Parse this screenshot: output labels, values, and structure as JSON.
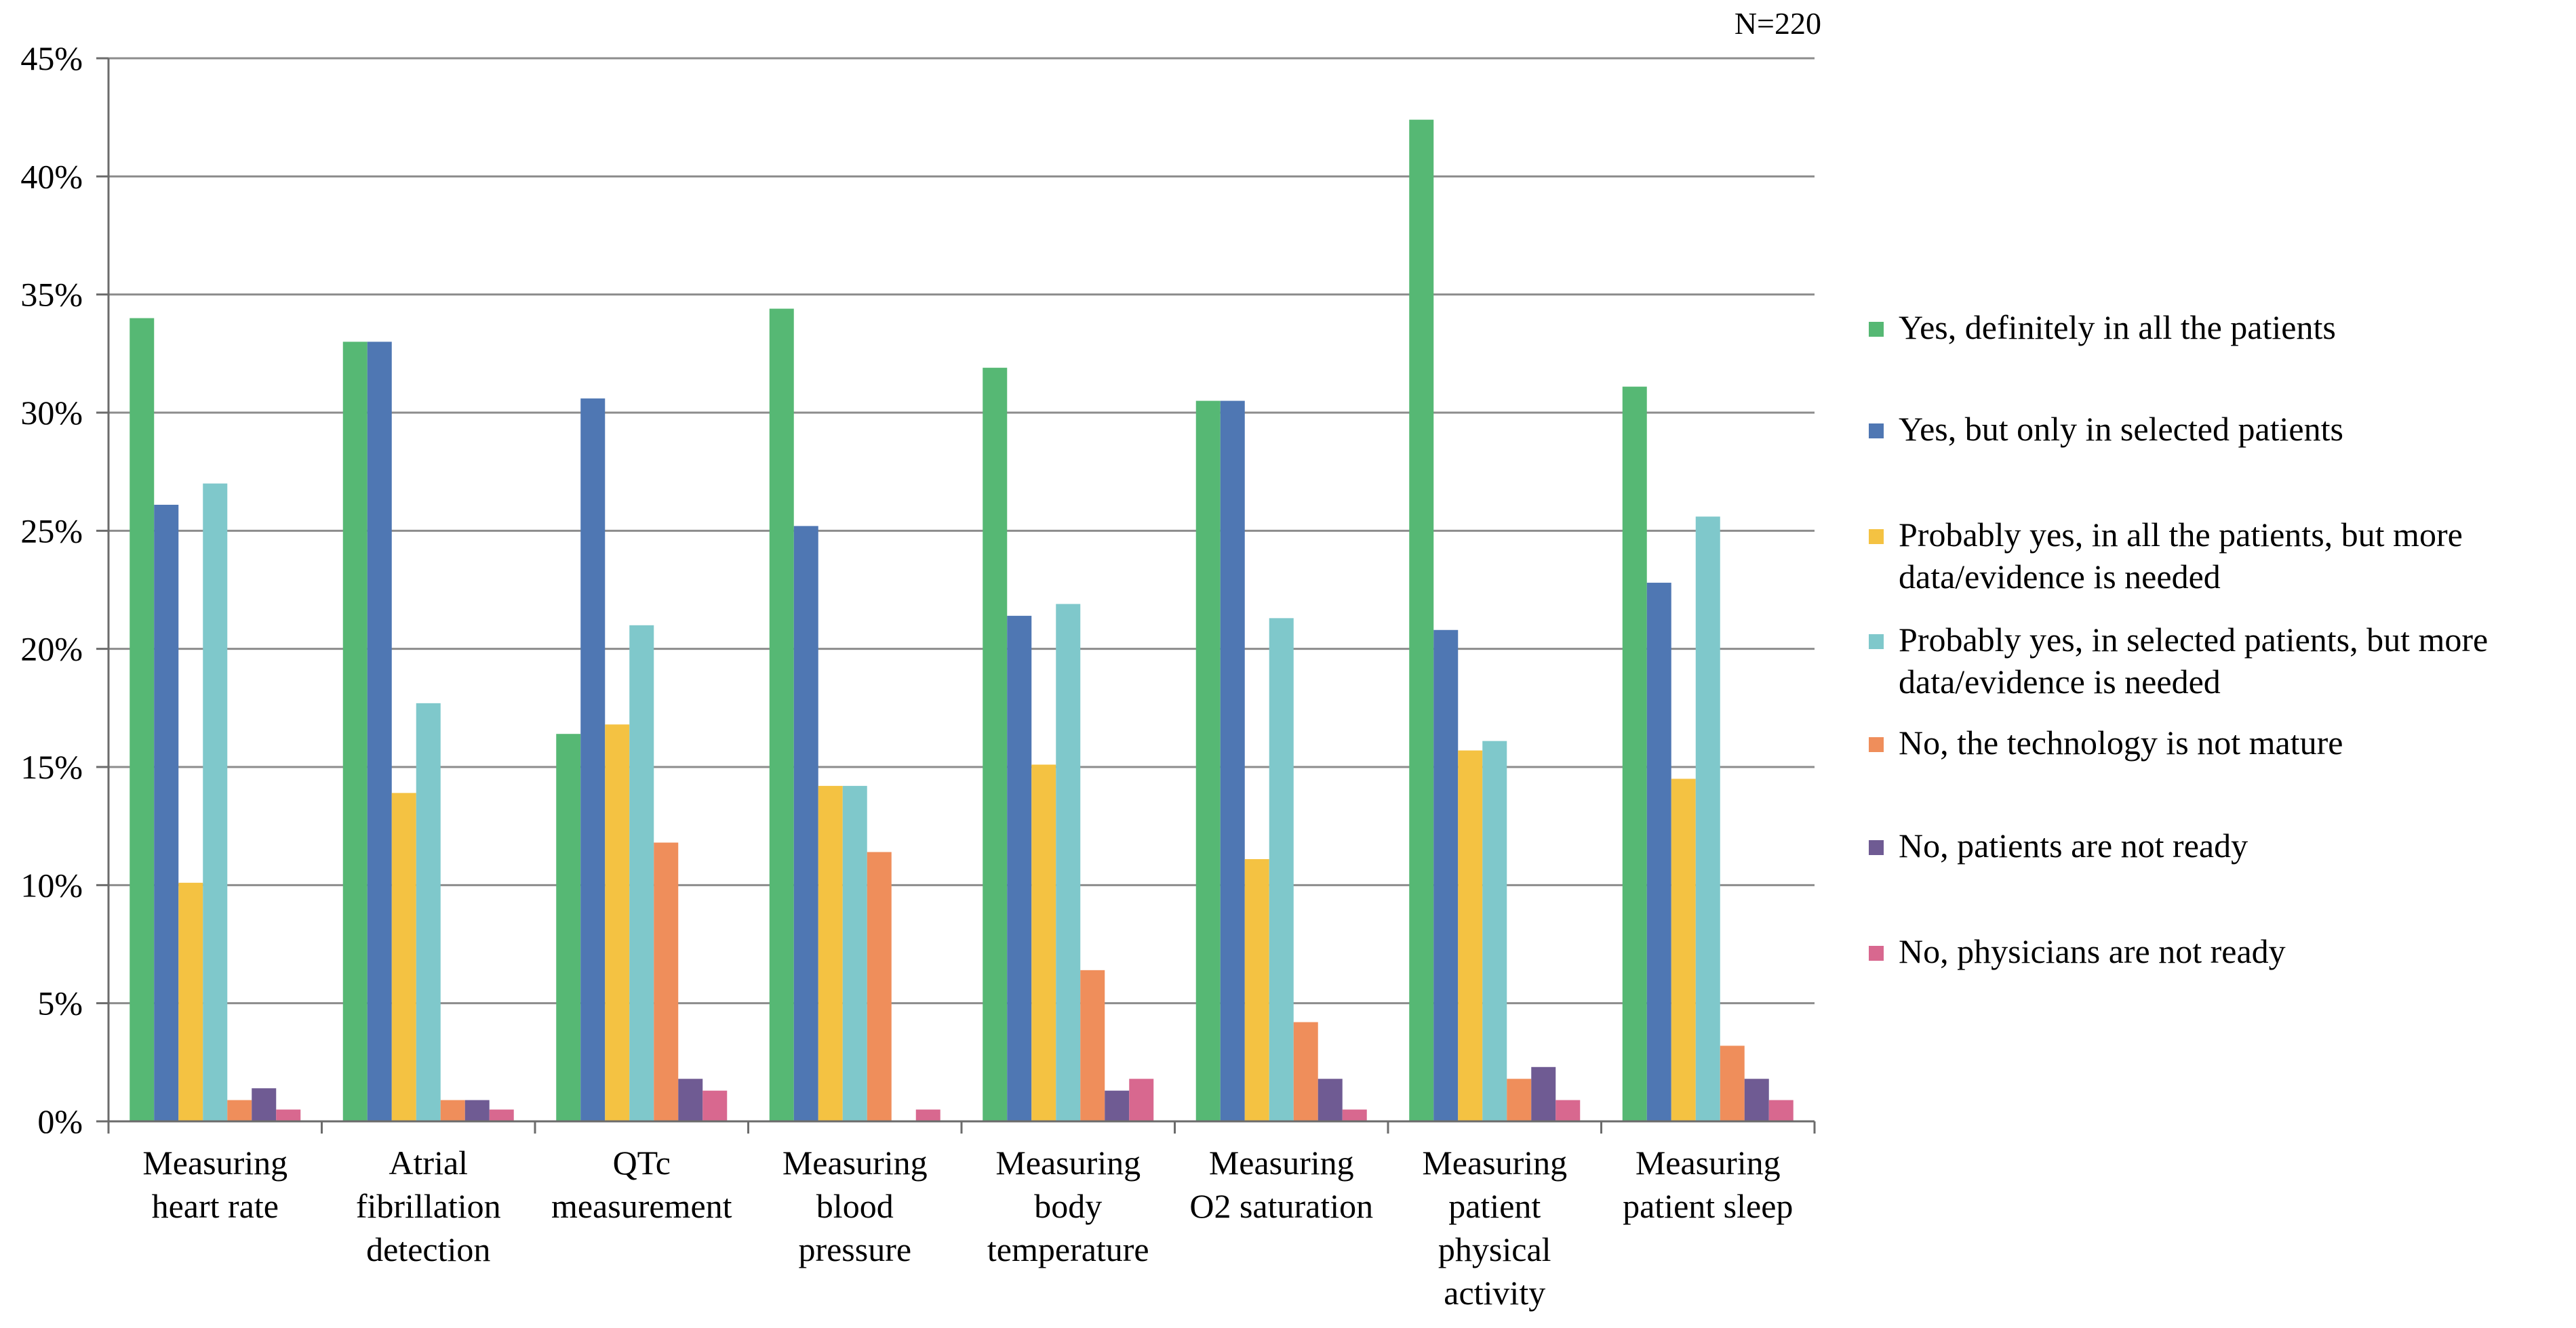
{
  "chart_data": {
    "type": "bar",
    "note": "N=220",
    "categories": [
      [
        "Measuring",
        "heart rate"
      ],
      [
        "Atrial",
        "fibrillation",
        "detection"
      ],
      [
        "QTc",
        "measurement"
      ],
      [
        "Measuring",
        "blood",
        "pressure"
      ],
      [
        "Measuring",
        "body",
        "temperature"
      ],
      [
        "Measuring",
        "O2 saturation"
      ],
      [
        "Measuring",
        "patient",
        "physical",
        "activity"
      ],
      [
        "Measuring",
        "patient sleep"
      ]
    ],
    "ylim": [
      0,
      45
    ],
    "yticks": [
      0,
      5,
      10,
      15,
      20,
      25,
      30,
      35,
      40,
      45
    ],
    "ytick_labels": [
      "0%",
      "5%",
      "10%",
      "15%",
      "20%",
      "25%",
      "30%",
      "35%",
      "40%",
      "45%"
    ],
    "legend_position": "right",
    "series": [
      {
        "name": "Yes, definitely in all the patients",
        "legend": [
          "Yes, definitely in all the patients"
        ],
        "color": "#56b874",
        "values": [
          34.0,
          33.0,
          16.4,
          34.4,
          31.9,
          30.5,
          42.4,
          31.1
        ]
      },
      {
        "name": "Yes, but only in selected patients",
        "legend": [
          "Yes, but only in selected patients"
        ],
        "color": "#4f77b3",
        "values": [
          26.1,
          33.0,
          30.6,
          25.2,
          21.4,
          30.5,
          20.8,
          22.8
        ]
      },
      {
        "name": "Probably yes, in all the patients, but more data/evidence is needed",
        "legend": [
          "Probably yes, in all the patients, but more",
          "data/evidence is needed"
        ],
        "color": "#f4c242",
        "values": [
          10.1,
          13.9,
          16.8,
          14.2,
          15.1,
          11.1,
          15.7,
          14.5
        ]
      },
      {
        "name": "Probably yes, in selected patients, but more data/evidence is needed",
        "legend": [
          "Probably yes, in selected patients, but more",
          "data/evidence is needed"
        ],
        "color": "#7fc8cb",
        "values": [
          27.0,
          17.7,
          21.0,
          14.2,
          21.9,
          21.3,
          16.1,
          25.6
        ]
      },
      {
        "name": "No, the technology is not mature",
        "legend": [
          "No, the technology is not mature"
        ],
        "color": "#ef8e5b",
        "values": [
          0.9,
          0.9,
          11.8,
          11.4,
          6.4,
          4.2,
          1.8,
          3.2
        ]
      },
      {
        "name": "No, patients are not ready",
        "legend": [
          "No, patients are not ready"
        ],
        "color": "#6f5b93",
        "values": [
          1.4,
          0.9,
          1.8,
          0.0,
          1.3,
          1.8,
          2.3,
          1.8
        ]
      },
      {
        "name": "No, physicians are not ready",
        "legend": [
          "No, physicians are not ready"
        ],
        "color": "#d8688f",
        "values": [
          0.5,
          0.5,
          1.3,
          0.5,
          1.8,
          0.5,
          0.9,
          0.9
        ]
      }
    ]
  }
}
